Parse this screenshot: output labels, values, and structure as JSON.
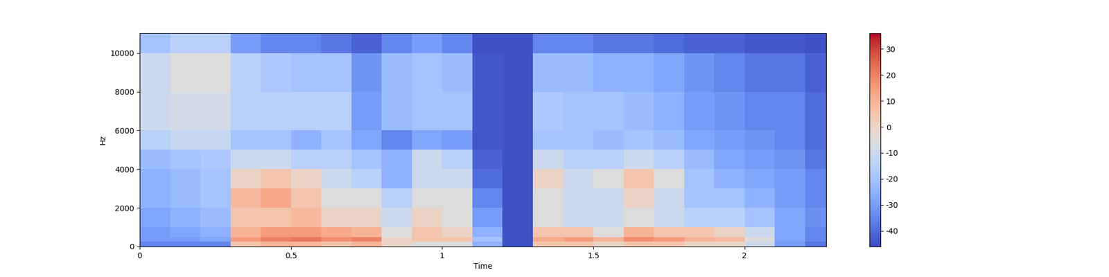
{
  "chart_data": {
    "type": "heatmap",
    "xlabel": "Time",
    "ylabel": "Hz",
    "color": "coolwarm",
    "x_edges": [
      0,
      0.1,
      0.2,
      0.3,
      0.4,
      0.5,
      0.6,
      0.7,
      0.8,
      0.9,
      1.0,
      1.1,
      1.2,
      1.3,
      1.4,
      1.5,
      1.6,
      1.7,
      1.8,
      1.9,
      2.0,
      2.1,
      2.2,
      2.27
    ],
    "y_edges": [
      0,
      250,
      500,
      1000,
      2000,
      3000,
      4000,
      5000,
      6000,
      8000,
      10000,
      11025
    ],
    "cells": [
      [
        -35,
        -35,
        -35,
        5,
        10,
        10,
        5,
        10,
        0,
        -5,
        -5,
        -25,
        -45,
        5,
        5,
        0,
        5,
        5,
        0,
        0,
        -10,
        -30,
        -38
      ],
      [
        -30,
        -30,
        -28,
        15,
        20,
        22,
        18,
        20,
        0,
        5,
        5,
        -20,
        -45,
        12,
        15,
        10,
        18,
        15,
        10,
        8,
        -5,
        -28,
        -35
      ],
      [
        -30,
        -28,
        -25,
        10,
        15,
        15,
        12,
        10,
        -5,
        5,
        0,
        -25,
        -45,
        5,
        5,
        -5,
        10,
        5,
        5,
        0,
        -10,
        -28,
        -35
      ],
      [
        -28,
        -25,
        -22,
        5,
        5,
        8,
        0,
        0,
        -10,
        0,
        -5,
        -30,
        -45,
        -5,
        -10,
        -10,
        -5,
        -10,
        -15,
        -15,
        -20,
        -28,
        -33
      ],
      [
        -25,
        -22,
        -20,
        8,
        12,
        5,
        -5,
        -5,
        -15,
        -5,
        -5,
        -35,
        -45,
        -5,
        -10,
        -10,
        0,
        -10,
        -20,
        -20,
        -25,
        -30,
        -35
      ],
      [
        -25,
        -22,
        -20,
        0,
        5,
        0,
        -10,
        -15,
        -25,
        -10,
        -10,
        -40,
        -45,
        0,
        -10,
        -5,
        5,
        -5,
        -20,
        -25,
        -28,
        -30,
        -35
      ],
      [
        -22,
        -20,
        -18,
        -10,
        -10,
        -15,
        -15,
        -20,
        -25,
        -10,
        -15,
        -42,
        -45,
        -10,
        -15,
        -15,
        -10,
        -15,
        -22,
        -28,
        -30,
        -32,
        -38
      ],
      [
        -15,
        -12,
        -12,
        -20,
        -20,
        -25,
        -20,
        -28,
        -35,
        -28,
        -30,
        -44,
        -45,
        -20,
        -20,
        -22,
        -20,
        -22,
        -28,
        -30,
        -32,
        -35,
        -40
      ],
      [
        -10,
        -8,
        -8,
        -15,
        -15,
        -15,
        -15,
        -30,
        -22,
        -20,
        -20,
        -44,
        -45,
        -18,
        -20,
        -20,
        -22,
        -25,
        -30,
        -32,
        -35,
        -35,
        -40
      ],
      [
        -10,
        -5,
        -5,
        -15,
        -18,
        -20,
        -20,
        -32,
        -22,
        -20,
        -22,
        -44,
        -45,
        -22,
        -22,
        -25,
        -25,
        -28,
        -32,
        -35,
        -38,
        -38,
        -42
      ],
      [
        -20,
        -15,
        -15,
        -30,
        -35,
        -35,
        -38,
        -42,
        -35,
        -30,
        -35,
        -45,
        -45,
        -35,
        -35,
        -38,
        -38,
        -40,
        -42,
        -42,
        -44,
        -44,
        -45
      ]
    ],
    "xlim": [
      0,
      2.27
    ],
    "ylim": [
      0,
      11025
    ],
    "xticks": [
      0,
      0.5,
      1,
      1.5,
      2
    ],
    "yticks": [
      0,
      2000,
      4000,
      6000,
      8000,
      10000
    ],
    "colorbar_range": [
      -46,
      36
    ],
    "colorbar_ticks": [
      -40,
      -30,
      -20,
      -10,
      0,
      10,
      20,
      30
    ]
  }
}
